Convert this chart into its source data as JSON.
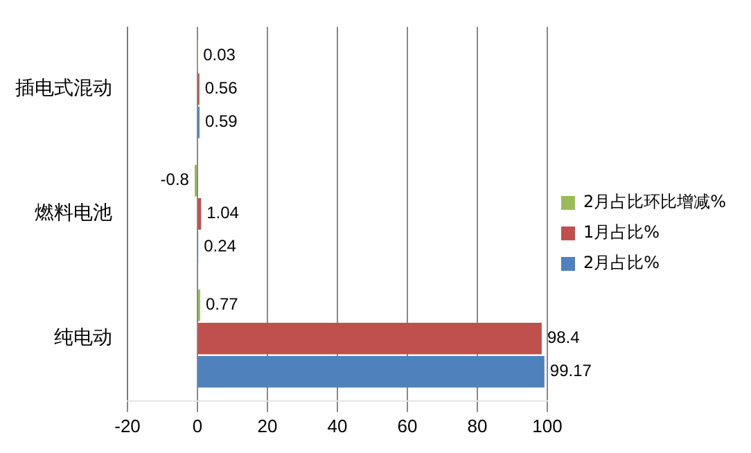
{
  "chart_data": {
    "type": "bar",
    "orientation": "horizontal",
    "categories": [
      "插电式混动",
      "燃料电池",
      "纯电动"
    ],
    "series": [
      {
        "name": "2月占比环比增减%",
        "color": "#9bbb59",
        "values": [
          0.03,
          -0.8,
          0.77
        ]
      },
      {
        "name": "1月占比%",
        "color": "#c0504d",
        "values": [
          0.56,
          1.04,
          98.4
        ]
      },
      {
        "name": "2月占比%",
        "color": "#4f81bd",
        "values": [
          0.59,
          0.24,
          99.17
        ]
      }
    ],
    "xlim": [
      -20,
      100
    ],
    "xticks": [
      -20,
      0,
      20,
      40,
      60,
      80,
      100
    ],
    "grid": "x",
    "legend": "right",
    "data_labels": true
  }
}
